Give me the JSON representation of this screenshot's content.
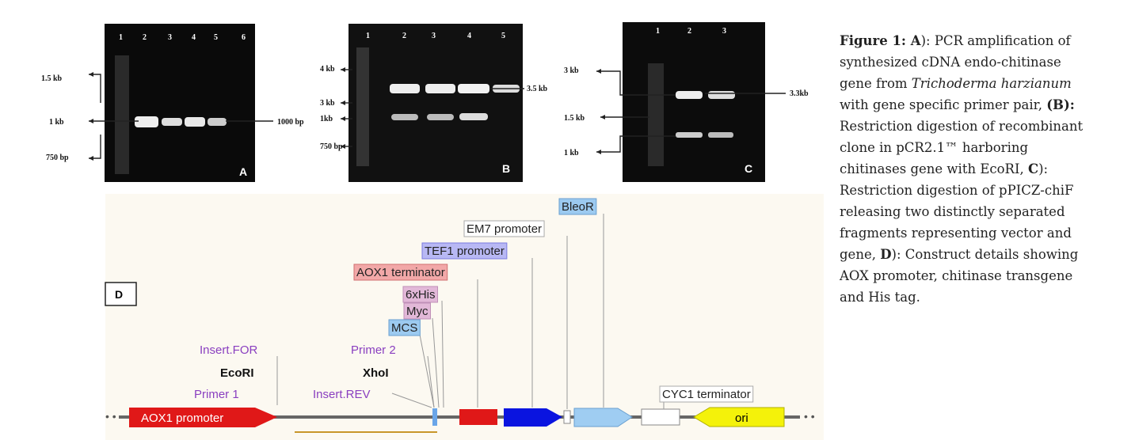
{
  "gels": [
    {
      "letter": "A",
      "lanes": [
        "1",
        "2",
        "3",
        "4",
        "5",
        "6"
      ],
      "left_labels": [
        "1.5 kb",
        "1 kb",
        "750 bp"
      ],
      "right_labels": [
        "1000 bp"
      ]
    },
    {
      "letter": "B",
      "lanes": [
        "1",
        "2",
        "3",
        "4",
        "5"
      ],
      "left_labels": [
        "4 kb",
        "3 kb",
        "1kb",
        "750 bp"
      ],
      "right_labels": [
        "3.5 kb"
      ]
    },
    {
      "letter": "C",
      "lanes": [
        "1",
        "2",
        "3"
      ],
      "left_labels": [
        "3 kb",
        "1.5 kb",
        "1 kb"
      ],
      "right_labels": [
        "3.3kb"
      ]
    }
  ],
  "construct": {
    "panel": "D",
    "features": [
      "AOX1 promoter",
      "ori"
    ],
    "labels": [
      "Insert.FOR",
      "EcoRI",
      "Primer 1",
      "Primer 2",
      "XhoI",
      "Insert.REV",
      "MCS",
      "Myc",
      "6xHis",
      "AOX1 terminator",
      "TEF1 promoter",
      "EM7 promoter",
      "BleoR",
      "CYC1 terminator"
    ]
  },
  "caption": {
    "segments": [
      "Figure 1: A",
      "): PCR amplification of synthesized cDNA endo-chitinase gene from ",
      "Trichoderma harzianum",
      " with gene specific primer pair, ",
      "(B):",
      " Restriction digestion of recombinant clone in pCR2.1™ harboring chitinases gene with EcoRI, ",
      "C",
      "): Restriction digestion of pPICZ-chiF releasing two distinctly separated fragments representing vector and gene, ",
      "D",
      "): Construct details showing AOX promoter, chitinase transgene and His tag."
    ]
  }
}
